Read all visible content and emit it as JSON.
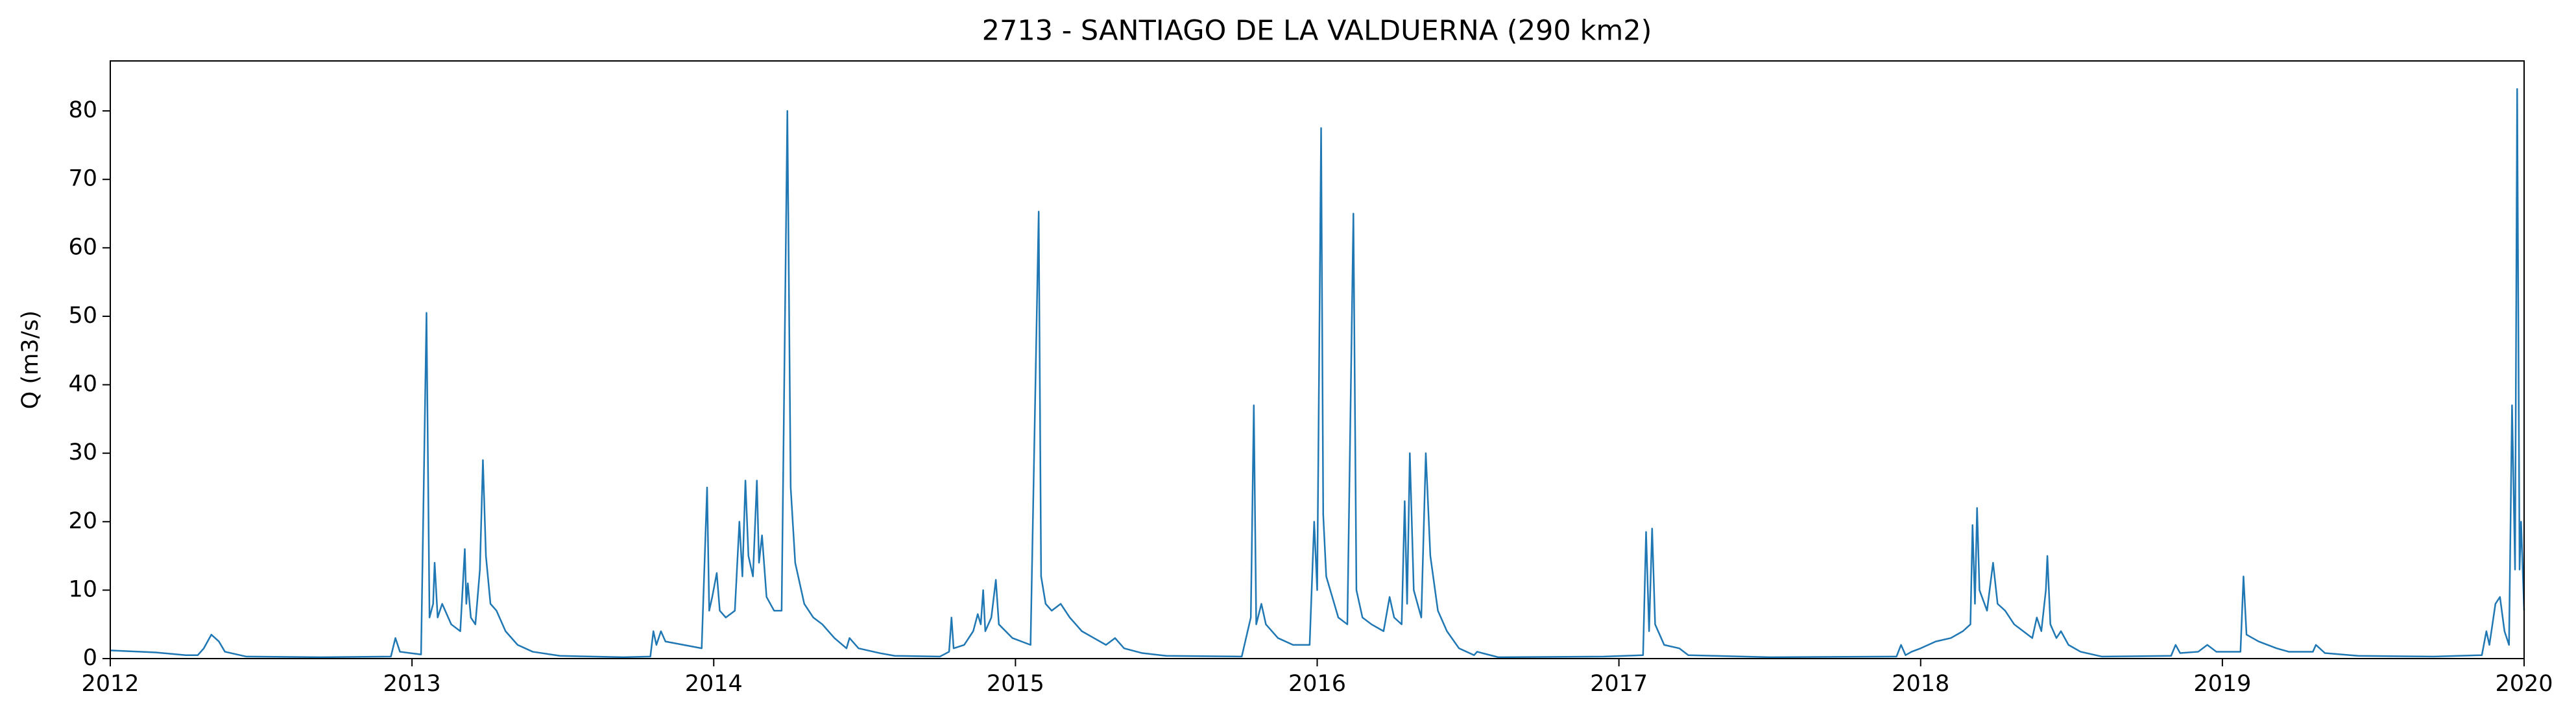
{
  "chart_data": {
    "type": "line",
    "title": "2713 - SANTIAGO DE LA VALDUERNA (290 km2)",
    "ylabel": "Q (m3/s)",
    "x": [
      2012.0,
      2012.15,
      2012.25,
      2012.29,
      2012.31,
      2012.335,
      2012.36,
      2012.38,
      2012.45,
      2012.7,
      2012.93,
      2012.945,
      2012.96,
      2013.03,
      2013.048,
      2013.058,
      2013.07,
      2013.075,
      2013.085,
      2013.1,
      2013.13,
      2013.16,
      2013.175,
      2013.18,
      2013.185,
      2013.195,
      2013.21,
      2013.225,
      2013.235,
      2013.245,
      2013.26,
      2013.28,
      2013.31,
      2013.35,
      2013.4,
      2013.49,
      2013.7,
      2013.79,
      2013.8,
      2013.81,
      2013.825,
      2013.84,
      2013.9,
      2013.96,
      2013.978,
      2013.985,
      2013.995,
      2014.01,
      2014.02,
      2014.04,
      2014.07,
      2014.085,
      2014.095,
      2014.105,
      2014.115,
      2014.13,
      2014.143,
      2014.15,
      2014.16,
      2014.175,
      2014.2,
      2014.225,
      2014.244,
      2014.255,
      2014.27,
      2014.3,
      2014.33,
      2014.36,
      2014.4,
      2014.44,
      2014.45,
      2014.48,
      2014.55,
      2014.6,
      2014.75,
      2014.78,
      2014.788,
      2014.795,
      2014.83,
      2014.86,
      2014.875,
      2014.885,
      2014.893,
      2014.9,
      2014.92,
      2014.935,
      2014.945,
      2014.99,
      2015.05,
      2015.077,
      2015.085,
      2015.1,
      2015.12,
      2015.15,
      2015.18,
      2015.22,
      2015.26,
      2015.3,
      2015.33,
      2015.36,
      2015.42,
      2015.5,
      2015.75,
      2015.78,
      2015.79,
      2015.798,
      2015.815,
      2015.83,
      2015.87,
      2015.92,
      2015.975,
      2015.99,
      2016.0,
      2016.013,
      2016.02,
      2016.03,
      2016.05,
      2016.07,
      2016.1,
      2016.12,
      2016.13,
      2016.15,
      2016.18,
      2016.22,
      2016.24,
      2016.255,
      2016.28,
      2016.29,
      2016.298,
      2016.307,
      2016.32,
      2016.345,
      2016.36,
      2016.375,
      2016.4,
      2016.43,
      2016.47,
      2016.52,
      2016.53,
      2016.6,
      2016.95,
      2017.08,
      2017.09,
      2017.1,
      2017.11,
      2017.12,
      2017.15,
      2017.2,
      2017.23,
      2017.5,
      2017.92,
      2017.935,
      2017.95,
      2017.97,
      2018.0,
      2018.05,
      2018.1,
      2018.14,
      2018.165,
      2018.172,
      2018.18,
      2018.187,
      2018.195,
      2018.22,
      2018.24,
      2018.255,
      2018.28,
      2018.31,
      2018.34,
      2018.37,
      2018.385,
      2018.4,
      2018.415,
      2018.42,
      2018.43,
      2018.45,
      2018.465,
      2018.49,
      2018.53,
      2018.6,
      2018.83,
      2018.845,
      2018.86,
      2018.92,
      2018.95,
      2018.98,
      2019.06,
      2019.07,
      2019.08,
      2019.12,
      2019.18,
      2019.22,
      2019.3,
      2019.31,
      2019.34,
      2019.45,
      2019.7,
      2019.86,
      2019.875,
      2019.885,
      2019.905,
      2019.92,
      2019.935,
      2019.95,
      2019.96,
      2019.97,
      2019.977,
      2019.985,
      2019.99,
      2020.0
    ],
    "series": [
      {
        "color": "#1f77b4",
        "values": [
          1.2,
          0.9,
          0.5,
          0.5,
          1.5,
          3.5,
          2.5,
          1.0,
          0.3,
          0.2,
          0.3,
          3.0,
          1.0,
          0.6,
          50.5,
          6,
          8,
          14,
          6,
          8,
          5,
          4,
          16,
          8,
          11,
          6,
          5,
          13,
          29,
          15,
          8,
          7,
          4,
          2,
          1,
          0.4,
          0.2,
          0.3,
          4,
          2,
          4,
          2.5,
          2,
          1.5,
          25,
          7,
          9,
          12.5,
          7,
          6,
          7,
          20,
          12,
          26,
          15,
          12,
          26,
          14,
          18,
          9,
          7,
          7,
          80,
          25,
          14,
          8,
          6,
          5,
          3,
          1.5,
          3,
          1.5,
          0.8,
          0.4,
          0.3,
          1,
          6,
          1.5,
          2,
          4,
          6.5,
          5,
          10,
          4,
          6,
          11.5,
          5,
          3,
          2,
          65.3,
          12,
          8,
          7,
          8,
          6,
          4,
          3,
          2,
          3,
          1.5,
          0.8,
          0.4,
          0.3,
          6,
          37,
          5,
          8,
          5,
          3,
          2,
          2,
          20,
          10,
          77.5,
          21,
          12,
          9,
          6,
          5,
          65,
          10,
          6,
          5,
          4,
          9,
          6,
          5,
          23,
          8,
          30,
          10,
          6,
          30,
          15,
          7,
          4,
          1.5,
          0.5,
          1,
          0.2,
          0.3,
          0.5,
          18.5,
          4,
          19,
          5,
          2,
          1.5,
          0.5,
          0.2,
          0.3,
          2,
          0.5,
          1,
          1.5,
          2.5,
          3,
          4,
          5,
          19.5,
          8,
          22,
          10,
          7,
          14,
          8,
          7,
          5,
          4,
          3,
          6,
          4,
          10,
          15,
          5,
          3,
          4,
          2,
          1,
          0.3,
          0.4,
          2,
          0.8,
          1,
          2,
          1,
          1,
          12,
          3.5,
          2.5,
          1.5,
          1,
          1,
          2,
          0.8,
          0.4,
          0.3,
          0.5,
          4,
          2,
          8,
          9,
          4,
          2,
          37,
          13,
          83.2,
          13,
          20,
          7
        ]
      }
    ],
    "xlim": [
      2012,
      2020
    ],
    "xticks": [
      2012,
      2013,
      2014,
      2015,
      2016,
      2017,
      2018,
      2019,
      2020
    ],
    "ylim": [
      0,
      87.3
    ],
    "yticks": [
      0,
      10,
      20,
      30,
      40,
      50,
      60,
      70,
      80
    ]
  }
}
